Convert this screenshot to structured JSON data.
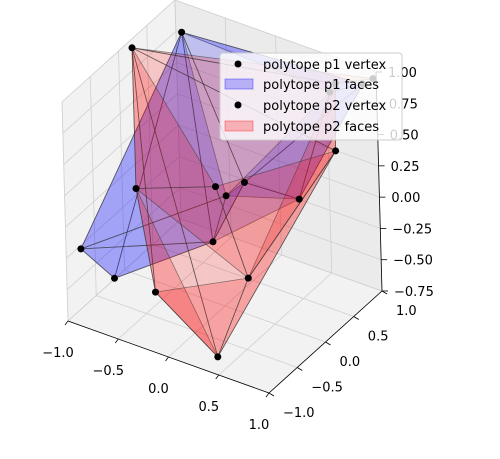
{
  "chart_data": {
    "type": "scatter",
    "projection": "3d",
    "grid": true,
    "legend_placement": "top-right",
    "xlim": [
      -1.0,
      1.0
    ],
    "ylim": [
      -1.0,
      1.0
    ],
    "zlim": [
      -0.75,
      1.0
    ],
    "x_ticks": [
      "−1.0",
      "−0.5",
      "0.0",
      "0.5",
      "1.0"
    ],
    "y_ticks": [
      "−1.0",
      "−0.5",
      "0.0",
      "0.5",
      "1.0"
    ],
    "z_ticks": [
      "−0.75",
      "−0.50",
      "−0.25",
      "0.00",
      "0.25",
      "0.50",
      "0.75",
      "1.00"
    ],
    "legend": [
      {
        "label": "polytope p1 vertex",
        "kind": "marker",
        "color": "#000000"
      },
      {
        "label": "polytope p1 faces",
        "kind": "patch",
        "color": "#0000ff"
      },
      {
        "label": "polytope p2 vertex",
        "kind": "marker",
        "color": "#000000"
      },
      {
        "label": "polytope p2 faces",
        "kind": "patch",
        "color": "#ff0000"
      }
    ],
    "series": [
      {
        "name": "polytope p1 vertex",
        "color": "#0000ff",
        "points": [
          [
            -0.78,
            0.72,
            0.92
          ],
          [
            0.85,
            0.45,
            1.02
          ],
          [
            0.98,
            0.8,
            0.98
          ],
          [
            0.55,
            -0.55,
            0.62
          ],
          [
            0.95,
            -0.3,
            0.5
          ],
          [
            -0.92,
            -0.88,
            -0.2
          ],
          [
            -0.55,
            -0.95,
            -0.3
          ],
          [
            0.45,
            -0.95,
            0.28
          ],
          [
            0.1,
            -0.1,
            0.2
          ]
        ],
        "faces": [
          [
            0,
            1,
            2
          ],
          [
            0,
            2,
            3
          ],
          [
            0,
            3,
            7
          ],
          [
            0,
            7,
            6
          ],
          [
            0,
            6,
            5
          ],
          [
            1,
            2,
            4
          ],
          [
            2,
            4,
            3
          ],
          [
            3,
            4,
            7
          ],
          [
            5,
            6,
            7
          ],
          [
            1,
            8,
            4
          ],
          [
            5,
            8,
            7
          ],
          [
            0,
            8,
            5
          ],
          [
            8,
            3,
            7
          ]
        ]
      },
      {
        "name": "polytope p2 vertex",
        "color": "#ff0000",
        "points": [
          [
            -0.98,
            0.2,
            0.95
          ],
          [
            0.6,
            0.98,
            0.8
          ],
          [
            0.95,
            0.35,
            0.62
          ],
          [
            -0.6,
            -0.45,
            0.2
          ],
          [
            0.3,
            -0.1,
            -0.4
          ],
          [
            0.35,
            -0.75,
            -0.75
          ],
          [
            -0.2,
            -0.85,
            -0.35
          ],
          [
            -0.15,
            0.15,
            0.1
          ],
          [
            0.98,
            0.98,
            0.95
          ]
        ],
        "faces": [
          [
            0,
            1,
            2
          ],
          [
            0,
            2,
            5
          ],
          [
            0,
            5,
            6
          ],
          [
            0,
            6,
            3
          ],
          [
            1,
            2,
            4
          ],
          [
            2,
            4,
            5
          ],
          [
            3,
            6,
            5
          ],
          [
            0,
            7,
            3
          ],
          [
            7,
            2,
            4
          ],
          [
            0,
            1,
            8
          ],
          [
            3,
            7,
            4
          ],
          [
            4,
            5,
            6
          ]
        ]
      }
    ]
  }
}
